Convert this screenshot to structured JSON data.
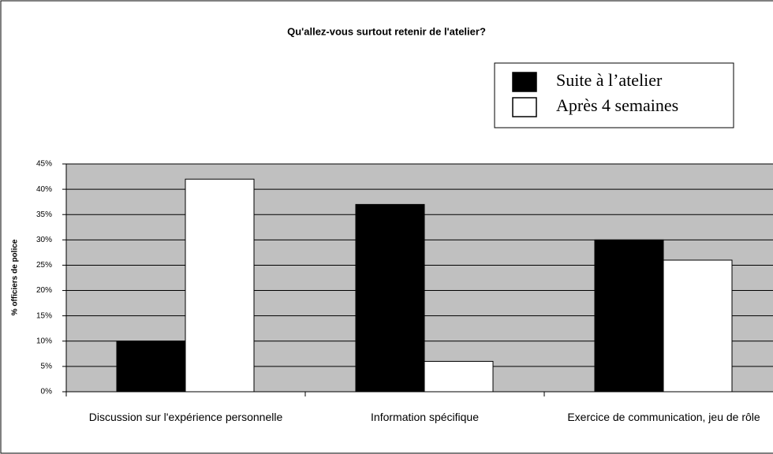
{
  "chart_data": {
    "type": "bar",
    "title": "Qu'allez-vous surtout retenir de l'atelier?",
    "y_label": "% officiers de police",
    "categories": [
      "Discussion sur l'expérience personnelle",
      "Information spécifique",
      "Exercice de communication, jeu de rôle"
    ],
    "series": [
      {
        "name": "Suite à l’atelier",
        "color": "#000000",
        "values": [
          10,
          37,
          30
        ]
      },
      {
        "name": "Après 4 semaines",
        "color": "#ffffff",
        "values": [
          42,
          6,
          26
        ]
      }
    ],
    "ylim": [
      0,
      45
    ],
    "yticks": [
      {
        "value": 0,
        "label": "0%"
      },
      {
        "value": 5,
        "label": "5%"
      },
      {
        "value": 10,
        "label": "10%"
      },
      {
        "value": 15,
        "label": "15%"
      },
      {
        "value": 20,
        "label": "20%"
      },
      {
        "value": 25,
        "label": "25%"
      },
      {
        "value": 30,
        "label": "30%"
      },
      {
        "value": 35,
        "label": "35%"
      },
      {
        "value": 40,
        "label": "40%"
      },
      {
        "value": 45,
        "label": "45%"
      }
    ],
    "grid": true,
    "background": "#c0c0c0",
    "legend": "top-right"
  }
}
